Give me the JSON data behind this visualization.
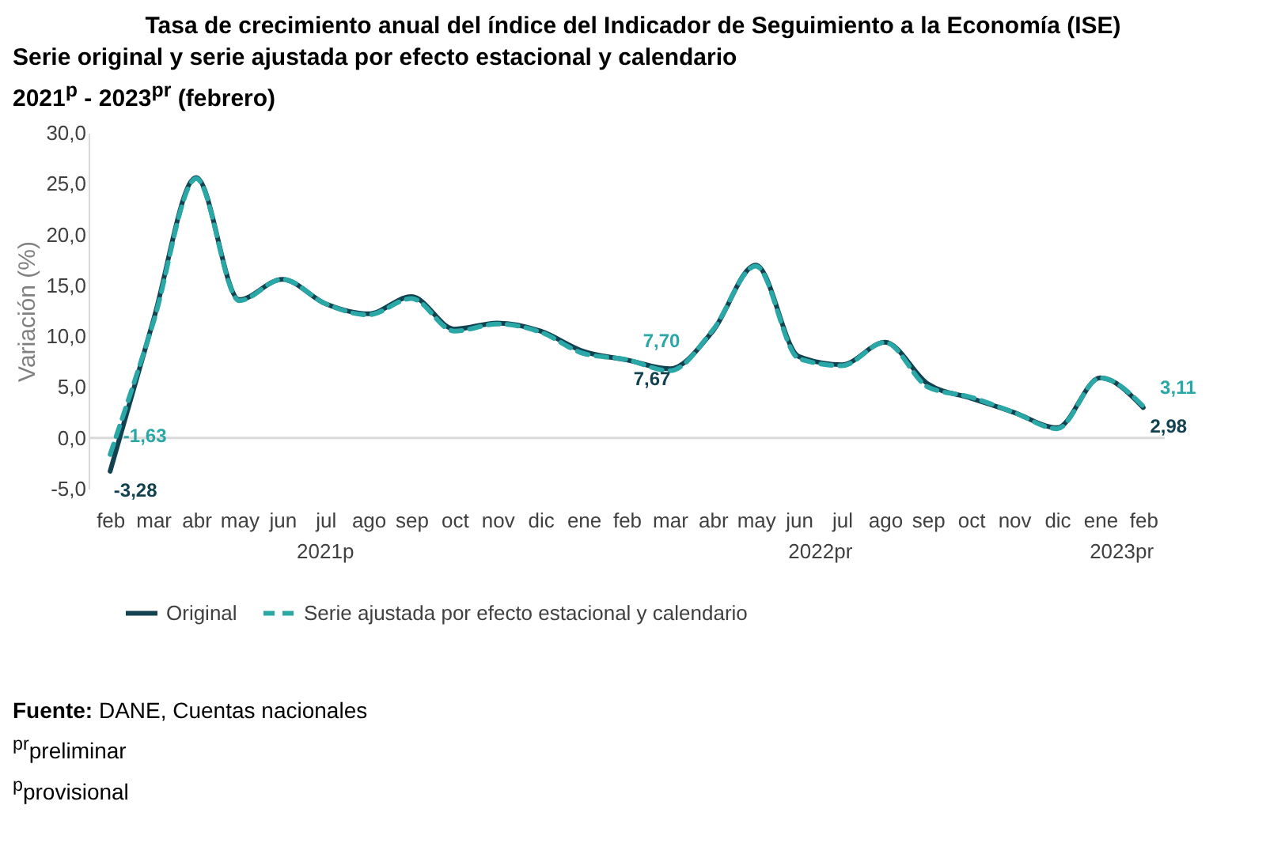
{
  "chart_data": {
    "type": "line",
    "title": "Tasa de crecimiento anual del índice del Indicador de Seguimiento a la Economía (ISE)",
    "subtitle": "Serie original y serie ajustada por efecto estacional y calendario\n2021$^{p}$ - 2023$^{pr}$ (febrero)",
    "ylabel": "Variación (%)",
    "categories": [
      "feb",
      "mar",
      "abr",
      "may",
      "jun",
      "jul",
      "ago",
      "sep",
      "oct",
      "nov",
      "dic",
      "ene",
      "feb",
      "mar",
      "abr",
      "may",
      "jun",
      "jul",
      "ago",
      "sep",
      "oct",
      "nov",
      "dic",
      "ene",
      "feb"
    ],
    "series": [
      {
        "name": "Original",
        "color": "#12424f",
        "line_style": "solid",
        "values": [
          -3.28,
          11.5,
          25.6,
          13.6,
          15.6,
          13.2,
          12.2,
          13.9,
          10.7,
          11.3,
          10.5,
          8.5,
          7.67,
          6.8,
          10.5,
          17.0,
          8.0,
          7.2,
          9.4,
          5.3,
          3.9,
          2.5,
          1.0,
          5.9,
          2.98
        ],
        "value_labels": [
          "-3,28",
          null,
          null,
          null,
          null,
          null,
          null,
          null,
          null,
          null,
          null,
          null,
          "7,67",
          null,
          null,
          null,
          null,
          null,
          null,
          null,
          null,
          null,
          null,
          null,
          "2,98"
        ]
      },
      {
        "name": "Serie ajustada por efecto estacional y calendario",
        "color": "#2aa7a7",
        "line_style": "dashed",
        "values": [
          -1.63,
          11.3,
          25.5,
          13.5,
          15.6,
          13.2,
          12.1,
          13.7,
          10.5,
          11.2,
          10.4,
          8.3,
          7.7,
          6.6,
          10.6,
          16.9,
          7.8,
          7.1,
          9.4,
          5.0,
          4.0,
          2.5,
          0.9,
          5.9,
          3.11
        ],
        "value_labels": [
          "-1,63",
          null,
          null,
          null,
          null,
          null,
          null,
          null,
          null,
          null,
          null,
          null,
          "7,70",
          null,
          null,
          null,
          null,
          null,
          null,
          null,
          null,
          null,
          null,
          null,
          "3,11"
        ]
      }
    ],
    "ylim": [
      -5,
      30
    ],
    "yticks": [
      {
        "value": -5,
        "label": "-5,0"
      },
      {
        "value": 0,
        "label": "0,0"
      },
      {
        "value": 5,
        "label": "5,0"
      },
      {
        "value": 10,
        "label": "10,0"
      },
      {
        "value": 15,
        "label": "15,0"
      },
      {
        "value": 20,
        "label": "20,0"
      },
      {
        "value": 25,
        "label": "25,0"
      },
      {
        "value": 30,
        "label": "30,0"
      }
    ],
    "ref_lines": [
      {
        "axis": "y",
        "value": 0,
        "color": "#d9d9d9"
      }
    ],
    "legend": "bottom",
    "grid": false,
    "annotations": [
      "2021p",
      "2022pr",
      "2023pr",
      "Fuente: DANE, Cuentas nacionales",
      "$^{pr}$preliminar",
      "$^{p}$provisional"
    ]
  }
}
